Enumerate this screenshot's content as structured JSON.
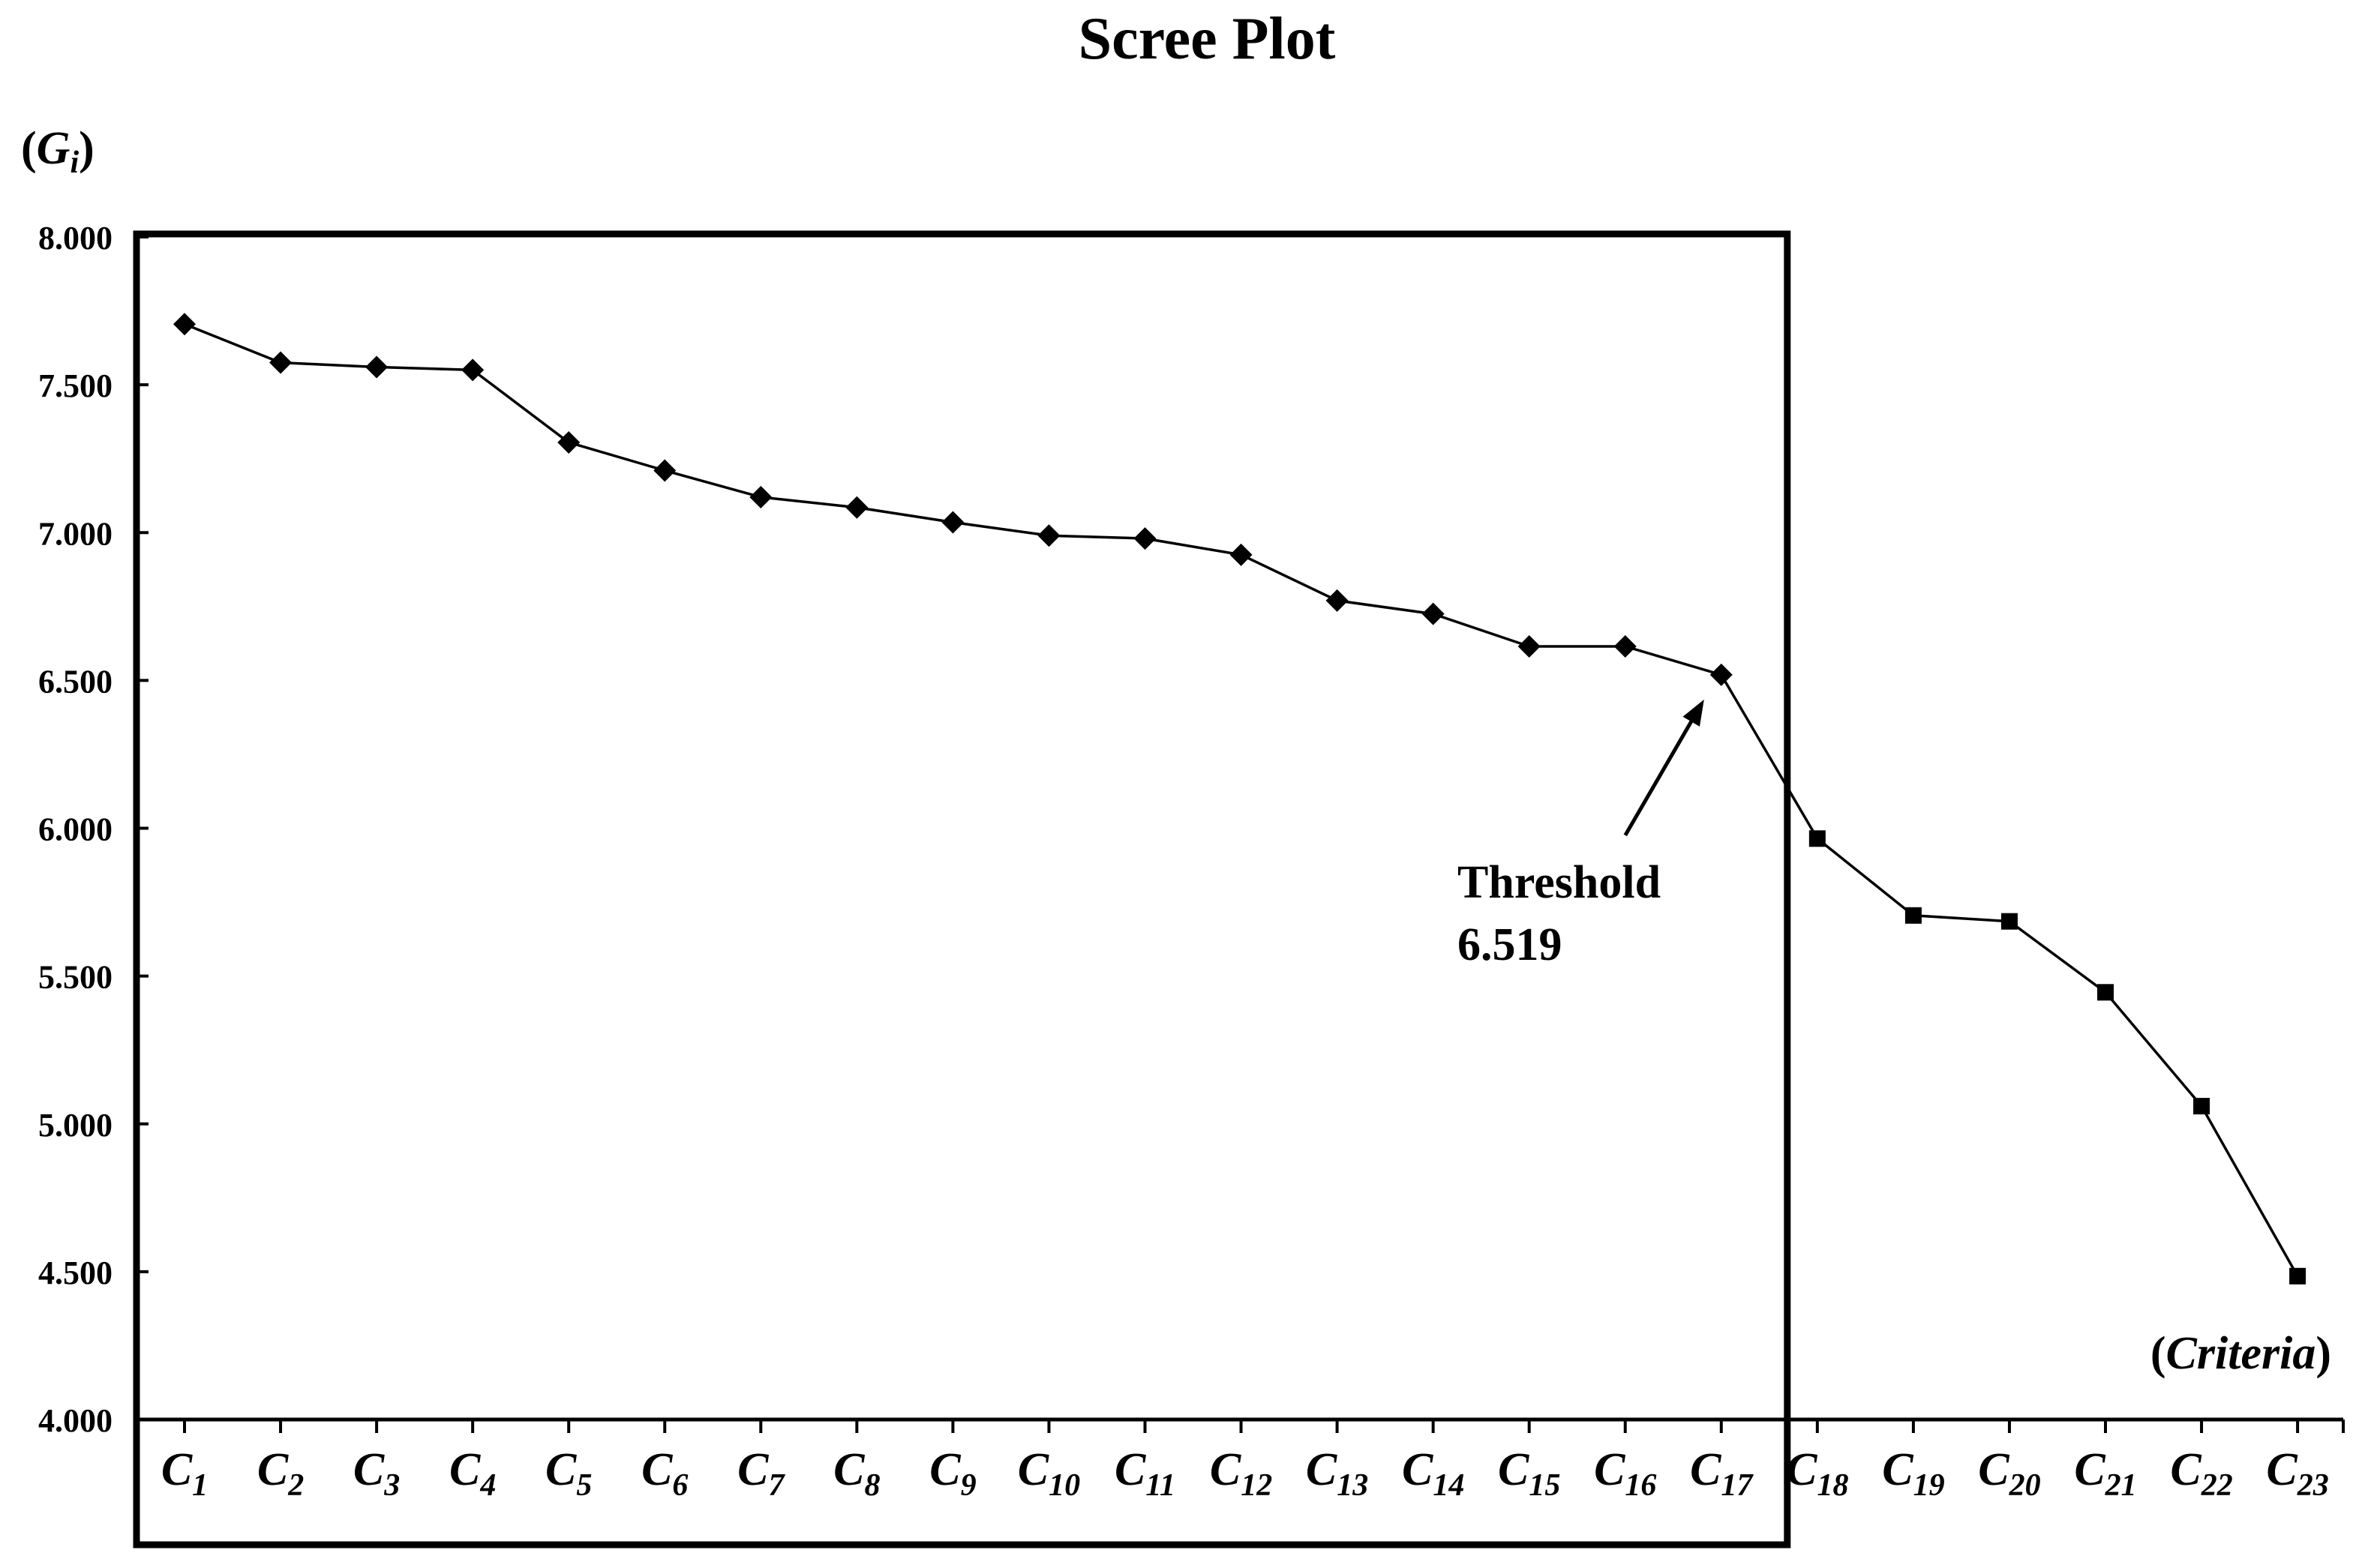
{
  "chart_data": {
    "type": "line",
    "title": "Scree Plot",
    "ylabel": {
      "main": "G",
      "sub": "i"
    },
    "xlabel": "Criteria",
    "ylim": [
      4.0,
      8.0
    ],
    "yticks": [
      4.0,
      4.5,
      5.0,
      5.5,
      6.0,
      6.5,
      7.0,
      7.5,
      8.0
    ],
    "ytick_labels": [
      "4.000",
      "4.500",
      "5.000",
      "5.500",
      "6.000",
      "6.500",
      "7.000",
      "7.500",
      "8.000"
    ],
    "categories": [
      "C1",
      "C2",
      "C3",
      "C4",
      "C5",
      "C6",
      "C7",
      "C8",
      "C9",
      "C10",
      "C11",
      "C12",
      "C13",
      "C14",
      "C15",
      "C16",
      "C17",
      "C18",
      "C19",
      "C20",
      "C21",
      "C22",
      "C23"
    ],
    "category_labels": [
      {
        "main": "C",
        "sub": "1"
      },
      {
        "main": "C",
        "sub": "2"
      },
      {
        "main": "C",
        "sub": "3"
      },
      {
        "main": "C",
        "sub": "4"
      },
      {
        "main": "C",
        "sub": "5"
      },
      {
        "main": "C",
        "sub": "6"
      },
      {
        "main": "C",
        "sub": "7"
      },
      {
        "main": "C",
        "sub": "8"
      },
      {
        "main": "C",
        "sub": "9"
      },
      {
        "main": "C",
        "sub": "10"
      },
      {
        "main": "C",
        "sub": "11"
      },
      {
        "main": "C",
        "sub": "12"
      },
      {
        "main": "C",
        "sub": "13"
      },
      {
        "main": "C",
        "sub": "14"
      },
      {
        "main": "C",
        "sub": "15"
      },
      {
        "main": "C",
        "sub": "16"
      },
      {
        "main": "C",
        "sub": "17"
      },
      {
        "main": "C",
        "sub": "18"
      },
      {
        "main": "C",
        "sub": "19"
      },
      {
        "main": "C",
        "sub": "20"
      },
      {
        "main": "C",
        "sub": "21"
      },
      {
        "main": "C",
        "sub": "22"
      },
      {
        "main": "C",
        "sub": "23"
      }
    ],
    "values": [
      7.705,
      7.575,
      7.56,
      7.55,
      7.305,
      7.21,
      7.12,
      7.085,
      7.035,
      6.99,
      6.98,
      6.925,
      6.77,
      6.725,
      6.615,
      6.615,
      6.519,
      5.965,
      5.705,
      5.685,
      5.445,
      5.06,
      4.485
    ],
    "markers": {
      "diamond_through": 16,
      "square_from": 17
    },
    "threshold": {
      "value": 6.519,
      "label_line1": "Threshold",
      "label_line2": "6.519",
      "at_category": "C17"
    },
    "selection_box": {
      "from_category": "C1",
      "to_category": "C17"
    },
    "grid": false
  }
}
